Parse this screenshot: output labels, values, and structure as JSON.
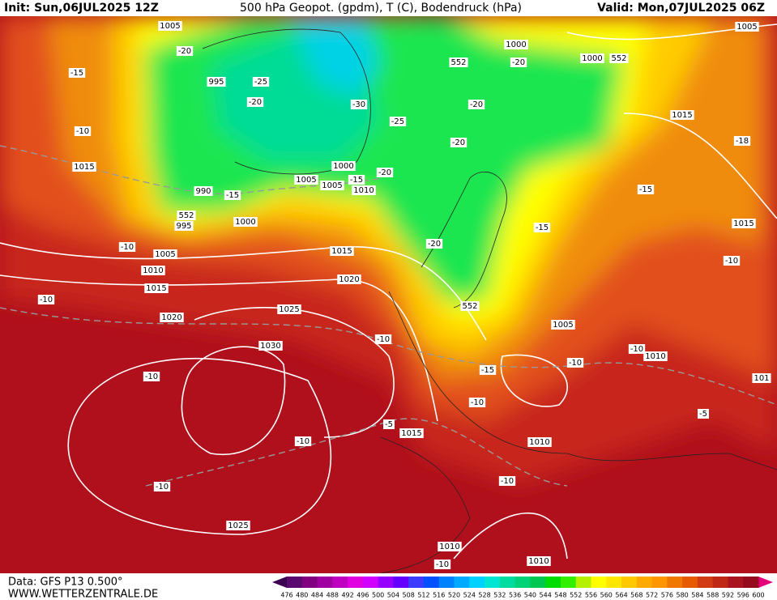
{
  "header": {
    "init": "Init: Sun,06JUL2025 12Z",
    "title": "500 hPa Geopot. (gpdm), T (C), Bodendruck (hPa)",
    "valid": "Valid: Mon,07JUL2025 06Z"
  },
  "footer": {
    "data": "Data: GFS P13 0.500°",
    "site": "WWW.WETTERZENTRALE.DE"
  },
  "colorbar": {
    "labels": [
      476,
      480,
      484,
      488,
      492,
      496,
      500,
      504,
      508,
      512,
      516,
      520,
      524,
      528,
      532,
      536,
      540,
      544,
      548,
      552,
      556,
      560,
      564,
      568,
      572,
      576,
      580,
      584,
      588,
      592,
      596,
      600
    ],
    "colors": [
      "#5a0a6e",
      "#800080",
      "#a000a0",
      "#c000c0",
      "#e000e0",
      "#d200ff",
      "#9600ff",
      "#6400ff",
      "#3c3cff",
      "#0050ff",
      "#0082ff",
      "#00aaff",
      "#00d2ff",
      "#00e6d2",
      "#00dca0",
      "#00d278",
      "#00c850",
      "#00dc00",
      "#32f000",
      "#b4f000",
      "#ffff00",
      "#ffe600",
      "#ffc800",
      "#ffaa00",
      "#ff9600",
      "#f07800",
      "#e65a00",
      "#d23c14",
      "#be2814",
      "#aa141e",
      "#960a1e"
    ]
  },
  "map": {
    "contour_labels": [
      1005,
      -20,
      -15,
      995,
      -25,
      -20,
      -10,
      1015,
      990,
      -15,
      552,
      995,
      1000,
      1005,
      1000,
      1005,
      1010,
      -15,
      -30,
      -25,
      -20,
      552,
      1000,
      -20,
      1000,
      552,
      1005,
      -20,
      -20,
      1015,
      -18,
      -15,
      1015,
      -15,
      -20,
      -10,
      -10,
      1005,
      1010,
      1015,
      1015,
      1020,
      -10,
      552,
      1025,
      1020,
      1005,
      -10,
      1030,
      -10,
      1010,
      -10,
      -15,
      -10,
      101,
      -10,
      -5,
      1015,
      -5,
      -10,
      1010,
      -10,
      -10,
      1025,
      1010,
      -10,
      1010
    ]
  }
}
